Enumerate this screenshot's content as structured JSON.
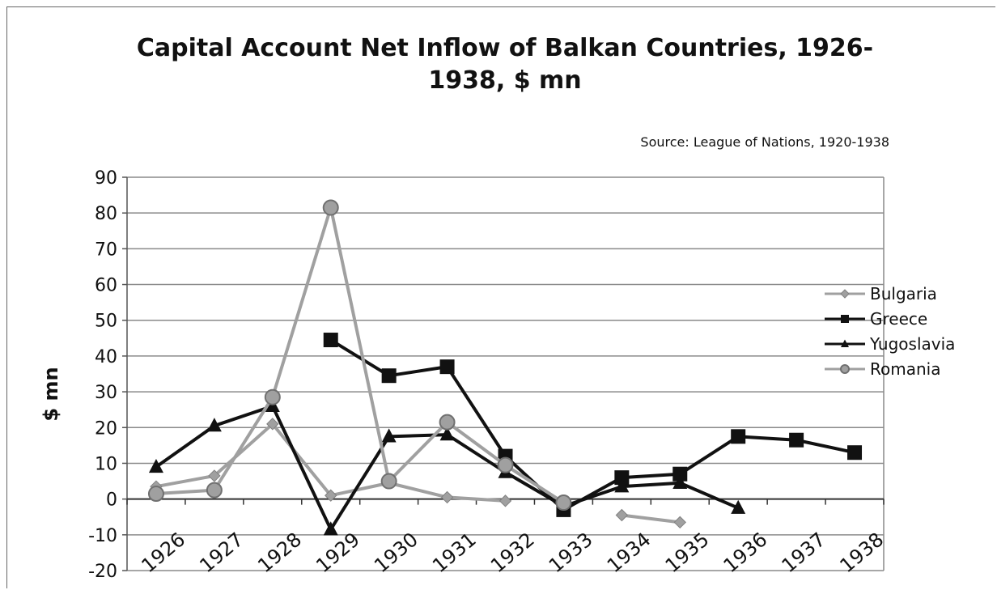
{
  "chart_data": {
    "type": "line",
    "title_line1": "Capital Account Net Inflow of Balkan Countries, 1926-",
    "title_line2": "1938, $ mn",
    "subtitle": "Source: League of Nations, 1920-1938",
    "xlabel": "",
    "ylabel": "$ mn",
    "ylim": [
      -20,
      90
    ],
    "yticks": [
      90,
      80,
      70,
      60,
      50,
      40,
      30,
      20,
      10,
      0,
      -10,
      -20
    ],
    "grid": true,
    "legend_position": "right",
    "categories": [
      "1926",
      "1927",
      "1928",
      "1929",
      "1930",
      "1931",
      "1932",
      "1933",
      "1934",
      "1935",
      "1936",
      "1937",
      "1938"
    ],
    "series": [
      {
        "name": "Bulgaria",
        "color": "#a0a0a0",
        "marker": "diamond",
        "values": [
          3.5,
          6.5,
          21,
          1,
          4.5,
          0.5,
          -0.5,
          null,
          -4.5,
          -6.5,
          null,
          null,
          null
        ]
      },
      {
        "name": "Greece",
        "color": "#111111",
        "marker": "square",
        "values": [
          null,
          null,
          null,
          44.5,
          34.5,
          37,
          12,
          -3,
          6,
          7,
          17.5,
          16.5,
          13
        ]
      },
      {
        "name": "Yugoslavia",
        "color": "#111111",
        "marker": "triangle",
        "values": [
          9,
          20.5,
          26,
          -8.5,
          17.5,
          18,
          7.5,
          -2,
          3.5,
          4.5,
          -2.5,
          null,
          null
        ]
      },
      {
        "name": "Romania",
        "color": "#a0a0a0",
        "marker": "circle",
        "values": [
          1.5,
          2.5,
          28.5,
          81.5,
          5,
          21.5,
          9.5,
          -1,
          null,
          null,
          null,
          null,
          null
        ]
      }
    ]
  }
}
